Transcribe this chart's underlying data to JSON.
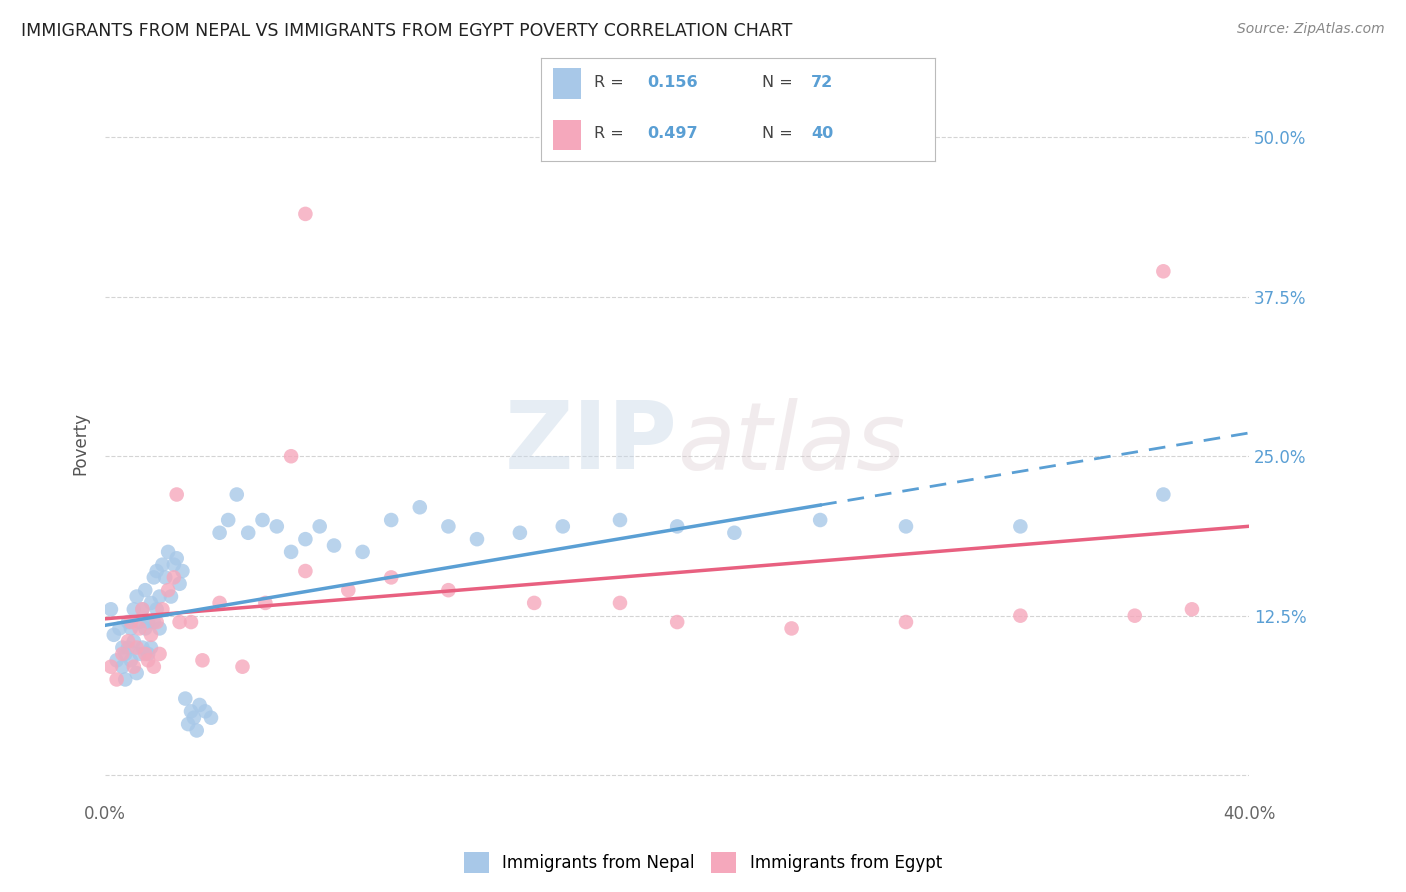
{
  "title": "IMMIGRANTS FROM NEPAL VS IMMIGRANTS FROM EGYPT POVERTY CORRELATION CHART",
  "source": "Source: ZipAtlas.com",
  "ylabel": "Poverty",
  "xlim": [
    0.0,
    0.4
  ],
  "ylim": [
    -0.02,
    0.54
  ],
  "yticks": [
    0.0,
    0.125,
    0.25,
    0.375,
    0.5
  ],
  "ytick_labels": [
    "",
    "12.5%",
    "25.0%",
    "37.5%",
    "50.0%"
  ],
  "xticks": [
    0.0,
    0.1,
    0.2,
    0.3,
    0.4
  ],
  "xtick_labels": [
    "0.0%",
    "",
    "",
    "",
    "40.0%"
  ],
  "nepal_R": 0.156,
  "nepal_N": 72,
  "egypt_R": 0.497,
  "egypt_N": 40,
  "nepal_color": "#a8c8e8",
  "egypt_color": "#f5a8bc",
  "nepal_line_color": "#5a9fd4",
  "egypt_line_color": "#e86080",
  "background_color": "#ffffff",
  "grid_color": "#d0d0d0",
  "watermark_zip": "ZIP",
  "watermark_atlas": "atlas",
  "legend_nepal_label": "Immigrants from Nepal",
  "legend_egypt_label": "Immigrants from Egypt",
  "nepal_x": [
    0.002,
    0.003,
    0.004,
    0.005,
    0.006,
    0.006,
    0.007,
    0.007,
    0.008,
    0.008,
    0.009,
    0.009,
    0.01,
    0.01,
    0.011,
    0.011,
    0.012,
    0.012,
    0.013,
    0.013,
    0.014,
    0.014,
    0.015,
    0.015,
    0.016,
    0.016,
    0.017,
    0.017,
    0.018,
    0.018,
    0.019,
    0.019,
    0.02,
    0.021,
    0.022,
    0.023,
    0.024,
    0.025,
    0.026,
    0.027,
    0.028,
    0.029,
    0.03,
    0.031,
    0.032,
    0.033,
    0.035,
    0.037,
    0.04,
    0.043,
    0.046,
    0.05,
    0.055,
    0.06,
    0.065,
    0.07,
    0.075,
    0.08,
    0.09,
    0.1,
    0.11,
    0.12,
    0.13,
    0.145,
    0.16,
    0.18,
    0.2,
    0.22,
    0.25,
    0.28,
    0.32,
    0.37
  ],
  "nepal_y": [
    0.13,
    0.11,
    0.09,
    0.115,
    0.1,
    0.085,
    0.095,
    0.075,
    0.12,
    0.1,
    0.115,
    0.09,
    0.13,
    0.105,
    0.14,
    0.08,
    0.12,
    0.095,
    0.13,
    0.1,
    0.145,
    0.115,
    0.12,
    0.095,
    0.135,
    0.1,
    0.155,
    0.12,
    0.16,
    0.13,
    0.14,
    0.115,
    0.165,
    0.155,
    0.175,
    0.14,
    0.165,
    0.17,
    0.15,
    0.16,
    0.06,
    0.04,
    0.05,
    0.045,
    0.035,
    0.055,
    0.05,
    0.045,
    0.19,
    0.2,
    0.22,
    0.19,
    0.2,
    0.195,
    0.175,
    0.185,
    0.195,
    0.18,
    0.175,
    0.2,
    0.21,
    0.195,
    0.185,
    0.19,
    0.195,
    0.2,
    0.195,
    0.19,
    0.2,
    0.195,
    0.195,
    0.22
  ],
  "egypt_x": [
    0.002,
    0.004,
    0.006,
    0.008,
    0.009,
    0.01,
    0.011,
    0.012,
    0.013,
    0.014,
    0.015,
    0.016,
    0.017,
    0.018,
    0.019,
    0.02,
    0.022,
    0.024,
    0.026,
    0.03,
    0.034,
    0.04,
    0.048,
    0.056,
    0.07,
    0.085,
    0.1,
    0.12,
    0.15,
    0.18,
    0.025,
    0.065,
    0.2,
    0.24,
    0.28,
    0.32,
    0.36,
    0.38,
    0.37,
    0.07
  ],
  "egypt_y": [
    0.085,
    0.075,
    0.095,
    0.105,
    0.12,
    0.085,
    0.1,
    0.115,
    0.13,
    0.095,
    0.09,
    0.11,
    0.085,
    0.12,
    0.095,
    0.13,
    0.145,
    0.155,
    0.12,
    0.12,
    0.09,
    0.135,
    0.085,
    0.135,
    0.16,
    0.145,
    0.155,
    0.145,
    0.135,
    0.135,
    0.22,
    0.25,
    0.12,
    0.115,
    0.12,
    0.125,
    0.125,
    0.13,
    0.395,
    0.44
  ]
}
